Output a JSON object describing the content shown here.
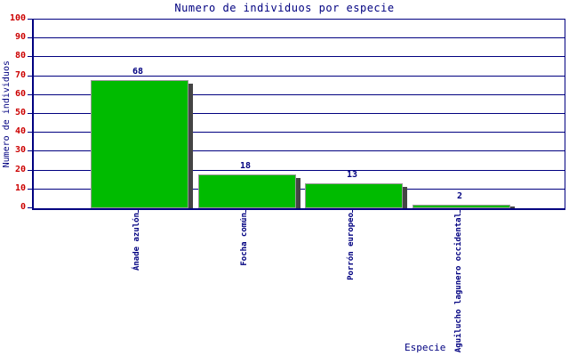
{
  "chart_data": {
    "type": "bar",
    "title": "Numero de individuos por especie",
    "xlabel": "Especie",
    "ylabel": "Numero de individuos",
    "categories": [
      "Ánade azulón",
      "Focha común",
      "Porrón europeo",
      "Aguilucho lagunero occidental"
    ],
    "values": [
      68,
      18,
      13,
      2
    ],
    "ylim": [
      0,
      100
    ],
    "ytick_step": 10,
    "grid": true,
    "legend": false,
    "colors": {
      "bar_fill": "#00bb00",
      "bar_border": "#999999",
      "bar_shadow": "#444444",
      "grid_line": "#000080",
      "plot_border": "#000080",
      "y_tick_label": "#cc0000",
      "value_label": "#000080",
      "category_label": "#000080",
      "title": "#000080",
      "axis_title": "#000080",
      "background": "#ffffff"
    }
  }
}
